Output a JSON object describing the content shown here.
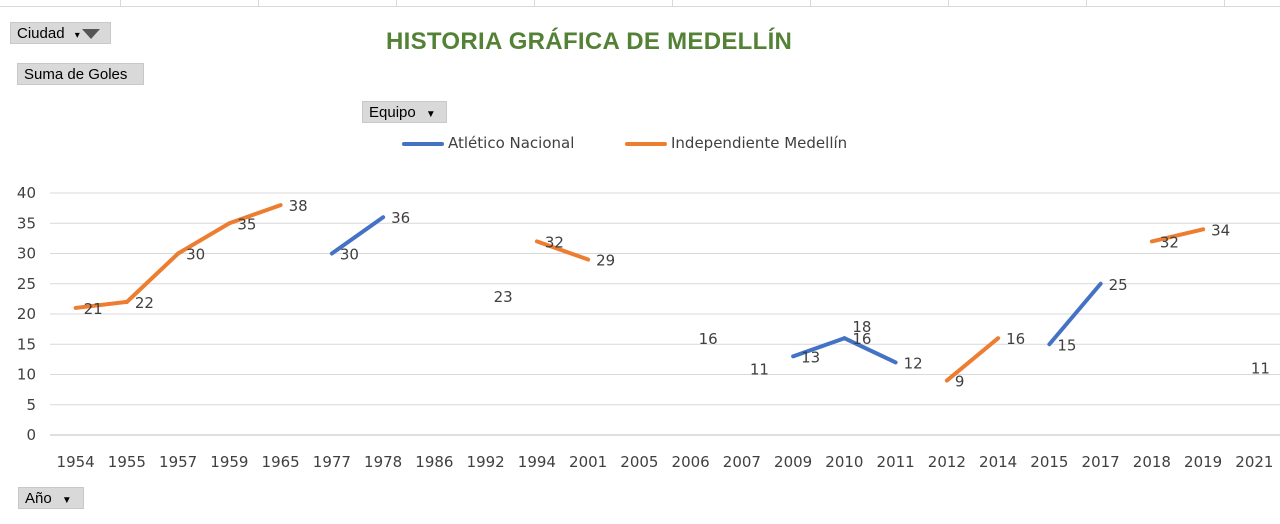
{
  "filters": {
    "ciudad_label": "Ciudad",
    "value_field_label": "Suma de Goles",
    "series_field_label": "Equipo",
    "axis_field_label": "Año"
  },
  "chart_data": {
    "type": "line",
    "title": "HISTORIA GRÁFICA DE MEDELLÍN",
    "categories": [
      "1954",
      "1955",
      "1957",
      "1959",
      "1965",
      "1977",
      "1978",
      "1986",
      "1992",
      "1994",
      "2001",
      "2005",
      "2006",
      "2007",
      "2009",
      "2010",
      "2011",
      "2012",
      "2014",
      "2015",
      "2017",
      "2018",
      "2019",
      "2021"
    ],
    "ylim": [
      0,
      40
    ],
    "yticks": [
      0,
      5,
      10,
      15,
      20,
      25,
      30,
      35,
      40
    ],
    "grid": true,
    "legend_position": "top",
    "series": [
      {
        "name": "Atlético Nacional",
        "color": "#4472c4",
        "values": [
          null,
          null,
          null,
          null,
          null,
          30,
          36,
          null,
          23,
          null,
          null,
          null,
          16,
          null,
          13,
          16,
          12,
          null,
          null,
          15,
          25,
          null,
          null,
          11
        ]
      },
      {
        "name": "Independiente Medellín",
        "color": "#ed7d31",
        "values": [
          21,
          22,
          30,
          35,
          38,
          null,
          null,
          null,
          null,
          32,
          29,
          null,
          null,
          11,
          null,
          18,
          null,
          9,
          16,
          null,
          null,
          32,
          34,
          null
        ]
      }
    ]
  }
}
